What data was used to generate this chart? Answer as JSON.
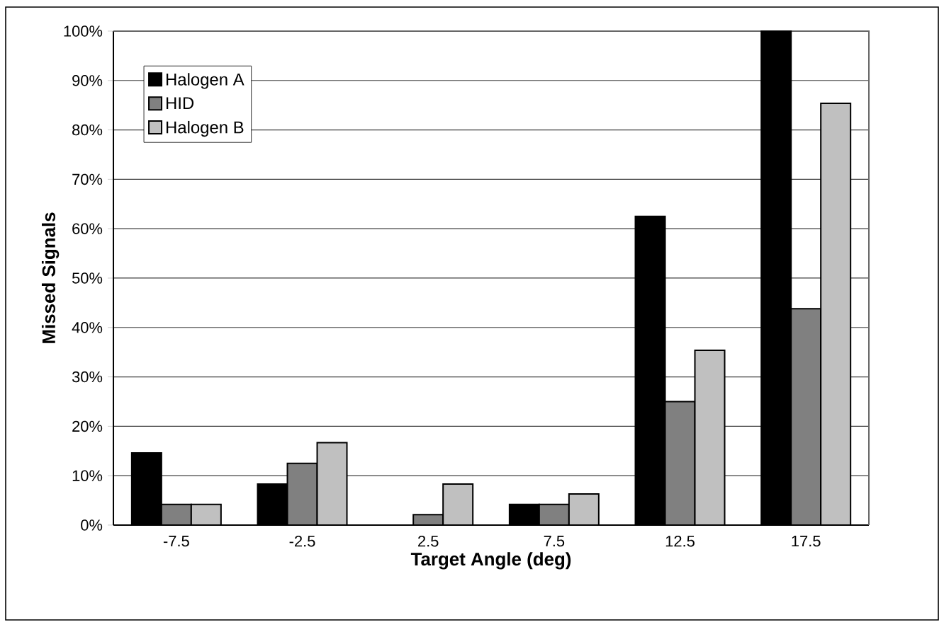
{
  "chart_data": {
    "type": "bar",
    "xlabel": "Target Angle (deg)",
    "ylabel": "Missed Signals",
    "categories": [
      "-7.5",
      "-2.5",
      "2.5",
      "7.5",
      "12.5",
      "17.5"
    ],
    "series": [
      {
        "name": "Halogen A",
        "color": "#000000",
        "values": [
          14.6,
          8.3,
          0,
          4.2,
          62.5,
          100
        ]
      },
      {
        "name": "HID",
        "color": "#808080",
        "values": [
          4.2,
          12.5,
          2.1,
          4.2,
          25,
          43.8
        ]
      },
      {
        "name": "Halogen B",
        "color": "#c0c0c0",
        "values": [
          4.2,
          16.7,
          8.3,
          6.3,
          35.4,
          85.4
        ]
      }
    ],
    "ylim": [
      0,
      100
    ],
    "yticks": [
      {
        "value": 0,
        "label": "0%"
      },
      {
        "value": 10,
        "label": "10%"
      },
      {
        "value": 20,
        "label": "20%"
      },
      {
        "value": 30,
        "label": "30%"
      },
      {
        "value": 40,
        "label": "40%"
      },
      {
        "value": 50,
        "label": "50%"
      },
      {
        "value": 60,
        "label": "60%"
      },
      {
        "value": 70,
        "label": "70%"
      },
      {
        "value": 80,
        "label": "80%"
      },
      {
        "value": 90,
        "label": "90%"
      },
      {
        "value": 100,
        "label": "100%"
      }
    ],
    "grid": "y",
    "legend": "top left"
  }
}
